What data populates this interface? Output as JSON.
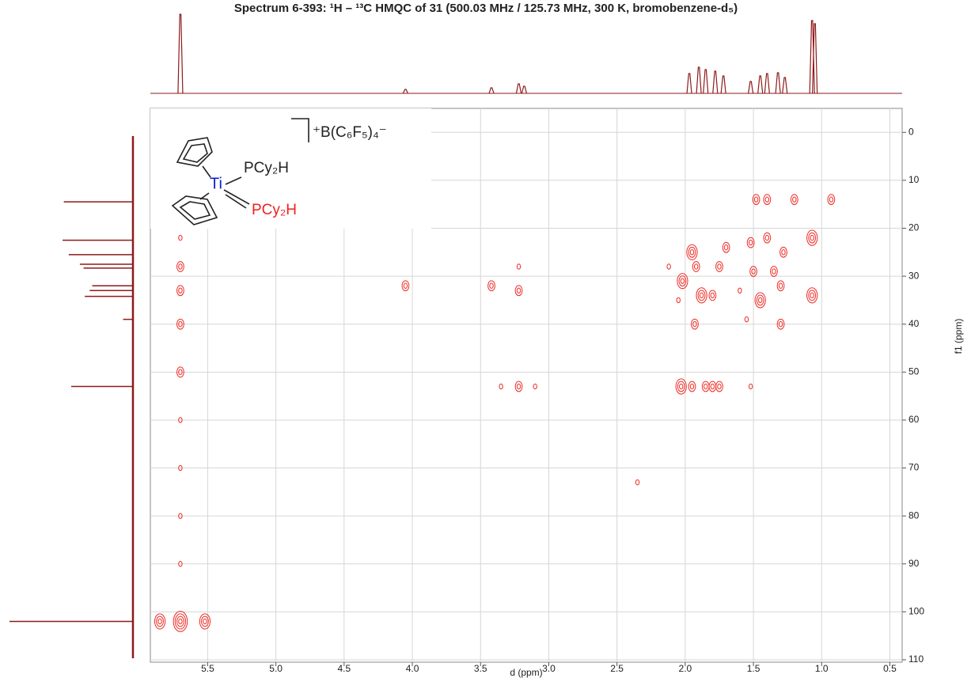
{
  "chart_data": {
    "type": "hsqc",
    "title": "Spectrum 6-393: ¹H – ¹³C HMQC of 31 (500.03 MHz / 125.73 MHz, 300 K, bromobenzene-d₅)",
    "xlabel": "d (ppm)",
    "ylabel": "f1 (ppm)",
    "xlim": [
      5.92,
      0.41
    ],
    "ylim": [
      -5,
      110.5
    ],
    "xticks": [
      {
        "value": 5.5,
        "label": "5.5"
      },
      {
        "value": 5,
        "label": "5.0"
      },
      4.5,
      {
        "value": 4,
        "label": "4.0"
      },
      3.5,
      {
        "value": 3,
        "label": "3.0"
      },
      2.5,
      {
        "value": 2,
        "label": "2.0"
      },
      1.5,
      {
        "value": 1,
        "label": "1.0"
      },
      0.5
    ],
    "yticks": [
      0,
      10,
      20,
      30,
      40,
      50,
      60,
      70,
      80,
      90,
      100,
      110
    ],
    "grid": true,
    "contour_color": "#ee2a24",
    "trace_color": "#8e1a1a",
    "cross_peaks": {
      "x": [
        5.7,
        5.85,
        5.52,
        5.7,
        5.7,
        5.7,
        5.7,
        5.7,
        5.7,
        5.7,
        5.7,
        5.7,
        4.05,
        3.42,
        3.22,
        3.22,
        3.35,
        3.22,
        3.1,
        2.35,
        2.12,
        2.02,
        1.95,
        1.92,
        1.88,
        1.8,
        1.75,
        1.7,
        1.6,
        1.52,
        1.5,
        1.45,
        1.4,
        1.35,
        1.3,
        1.28,
        1.48,
        1.4,
        1.2,
        0.93,
        1.07,
        1.07,
        1.93,
        1.3,
        1.55,
        2.03,
        1.95,
        1.85,
        1.8,
        1.75,
        1.52,
        2.05
      ],
      "y": [
        102,
        102,
        102,
        22,
        28,
        33,
        40,
        50,
        60,
        70,
        80,
        90,
        32,
        32,
        28,
        33,
        53,
        53,
        53,
        73,
        28,
        31,
        25,
        28,
        34,
        34,
        28,
        24,
        33,
        23,
        29,
        35,
        22,
        29,
        32,
        25,
        14,
        14,
        14,
        14,
        22,
        34,
        40,
        40,
        39,
        53,
        53,
        53,
        53,
        53,
        53,
        35
      ],
      "levels": [
        4,
        3,
        3,
        1,
        2,
        2,
        2,
        2,
        1,
        1,
        1,
        1,
        2,
        2,
        1,
        2,
        1,
        2,
        1,
        1,
        1,
        3,
        3,
        2,
        3,
        2,
        2,
        2,
        1,
        2,
        2,
        3,
        2,
        2,
        2,
        2,
        2,
        2,
        2,
        2,
        3,
        3,
        2,
        2,
        1,
        3,
        2,
        2,
        2,
        2,
        1,
        1
      ]
    },
    "f2_projection": {
      "x": [
        5.7,
        4.05,
        3.42,
        3.22,
        3.18,
        1.97,
        1.9,
        1.85,
        1.78,
        1.72,
        1.52,
        1.45,
        1.4,
        1.32,
        1.27,
        1.07,
        1.05
      ],
      "intensity": [
        100,
        5,
        7,
        12,
        9,
        25,
        33,
        30,
        28,
        22,
        15,
        22,
        25,
        26,
        20,
        92,
        88
      ]
    },
    "f1_projection": {
      "y": [
        14.5,
        22.5,
        25.5,
        27.5,
        28.3,
        32,
        33,
        34.2,
        39,
        53,
        102
      ],
      "intensity": [
        56,
        57,
        52,
        43,
        40,
        33,
        35,
        39,
        8,
        50,
        100
      ]
    },
    "annotations": {
      "metal": "Ti",
      "ligand_1": "PCy₂H",
      "ligand_2": "PCy₂H",
      "anion": "⁺B(C₆F₅)₄⁻"
    }
  }
}
